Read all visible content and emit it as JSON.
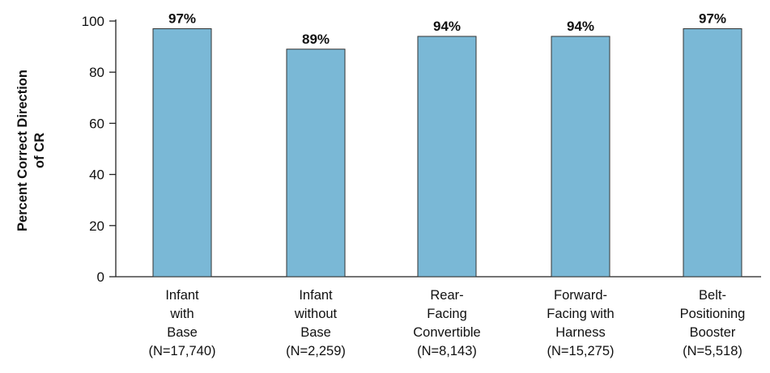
{
  "chart_data": {
    "type": "bar",
    "ylabel": [
      "Percent Correct Direction",
      "of CR"
    ],
    "ylim": [
      0,
      100
    ],
    "yticks": [
      "0",
      "20",
      "40",
      "60",
      "80",
      "100"
    ],
    "categories": [
      [
        "Infant",
        "with",
        "Base",
        "(N=17,740)"
      ],
      [
        "Infant",
        "without",
        "Base",
        "(N=2,259)"
      ],
      [
        "Rear-",
        "Facing",
        "Convertible",
        "(N=8,143)"
      ],
      [
        "Forward-",
        "Facing with",
        "Harness",
        "(N=15,275)"
      ],
      [
        "Belt-",
        "Positioning",
        "Booster",
        "(N=5,518)"
      ]
    ],
    "values": [
      97,
      89,
      94,
      94,
      97
    ],
    "data_labels": [
      "97%",
      "89%",
      "94%",
      "94%",
      "97%"
    ],
    "bar_color": "#7ab8d6",
    "bar_edge_color": "#333333",
    "grid": false
  }
}
